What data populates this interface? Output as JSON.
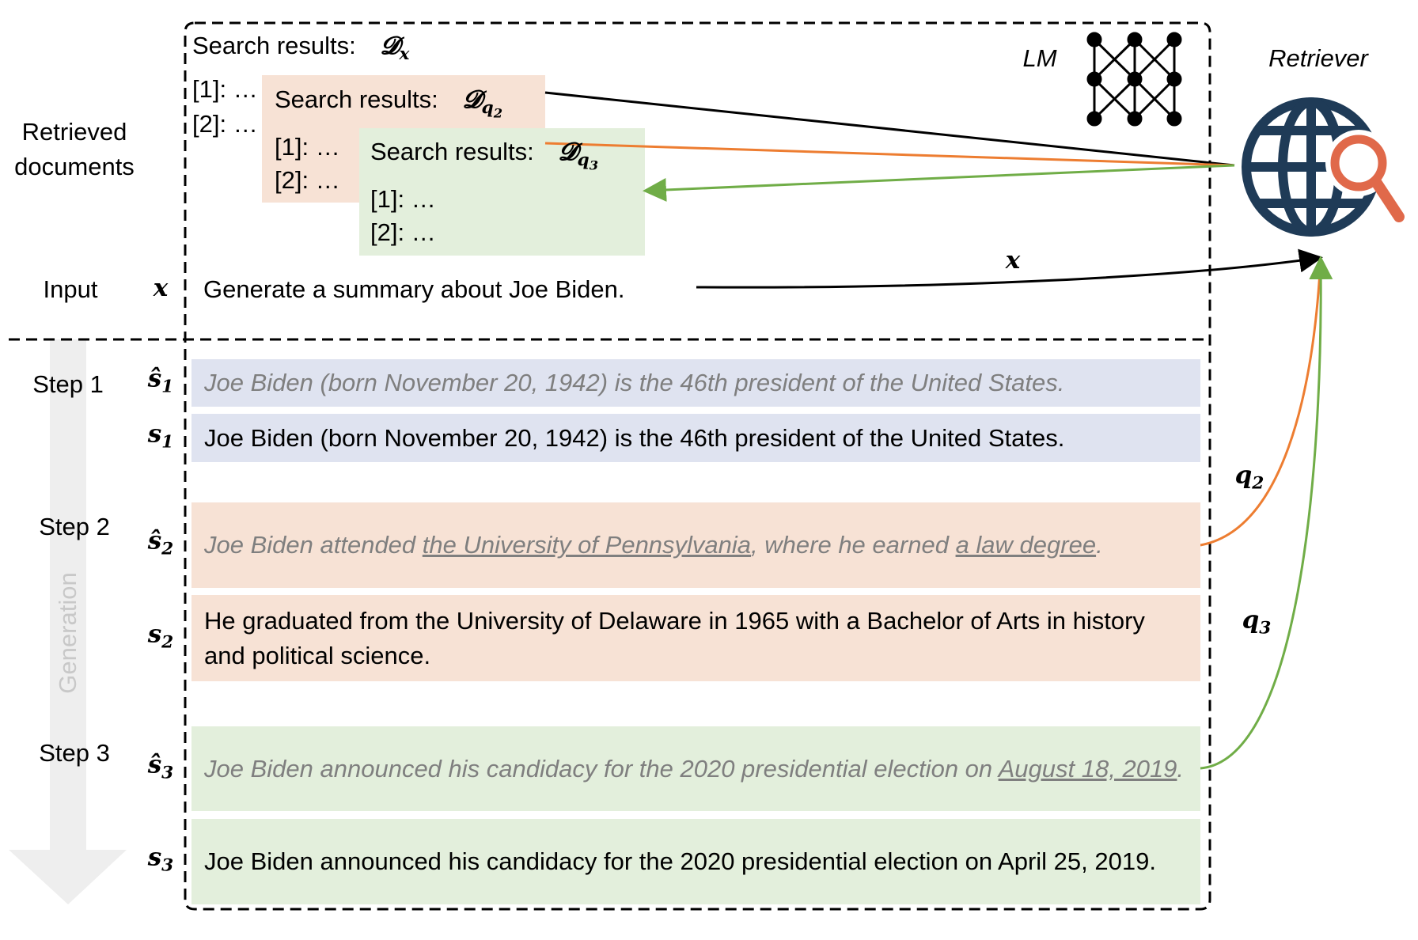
{
  "labels": {
    "retrieved": "Retrieved documents",
    "input": "Input",
    "steps": [
      "Step 1",
      "Step 2",
      "Step 3"
    ],
    "generation": "Generation",
    "lm": "LM",
    "retriever": "Retriever"
  },
  "input": {
    "symbol": "x",
    "text": "Generate a summary about Joe Biden."
  },
  "search_results": [
    {
      "label": "Search results:",
      "symbol": "𝓓",
      "subscript": "x",
      "subsubscript": null,
      "items": [
        "[1]: …",
        "[2]: …"
      ]
    },
    {
      "label": "Search results:",
      "symbol": "𝓓",
      "subscript": "q",
      "subsubscript": "2",
      "items": [
        "[1]: …",
        "[2]: …"
      ]
    },
    {
      "label": "Search results:",
      "symbol": "𝓓",
      "subscript": "q",
      "subsubscript": "3",
      "items": [
        "[1]: …",
        "[2]: …"
      ]
    }
  ],
  "arrow_labels": [
    {
      "symbol": "x",
      "subscript": null
    },
    {
      "symbol": "q",
      "subscript": "2"
    },
    {
      "symbol": "q",
      "subscript": "3"
    }
  ],
  "sentences": [
    {
      "symbol": "ŝ",
      "subscript": "1",
      "draft": true,
      "parts": [
        {
          "text": "Joe Biden (born November 20, 1942) is the 46th president of the United States.",
          "underline": false
        }
      ]
    },
    {
      "symbol": "s",
      "subscript": "1",
      "draft": false,
      "parts": [
        {
          "text": "Joe Biden (born November 20, 1942) is the 46th president of the United States.",
          "underline": false
        }
      ]
    },
    {
      "symbol": "ŝ",
      "subscript": "2",
      "draft": true,
      "parts": [
        {
          "text": "Joe Biden attended ",
          "underline": false
        },
        {
          "text": "the University of Pennsylvania",
          "underline": true
        },
        {
          "text": ", where he earned ",
          "underline": false
        },
        {
          "text": "a law degree",
          "underline": true
        },
        {
          "text": ".",
          "underline": false
        }
      ]
    },
    {
      "symbol": "s",
      "subscript": "2",
      "draft": false,
      "parts": [
        {
          "text": "He graduated from the University of Delaware in 1965 with a Bachelor of Arts in history and political science.",
          "underline": false
        }
      ]
    },
    {
      "symbol": "ŝ",
      "subscript": "3",
      "draft": true,
      "parts": [
        {
          "text": "Joe Biden announced his candidacy for the 2020 presidential election on ",
          "underline": false
        },
        {
          "text": "August 18, 2019",
          "underline": true
        },
        {
          "text": ".",
          "underline": false
        }
      ]
    },
    {
      "symbol": "s",
      "subscript": "3",
      "draft": false,
      "parts": [
        {
          "text": "Joe Biden announced his candidacy for the 2020 presidential election on April 25, 2019.",
          "underline": false
        }
      ]
    }
  ]
}
